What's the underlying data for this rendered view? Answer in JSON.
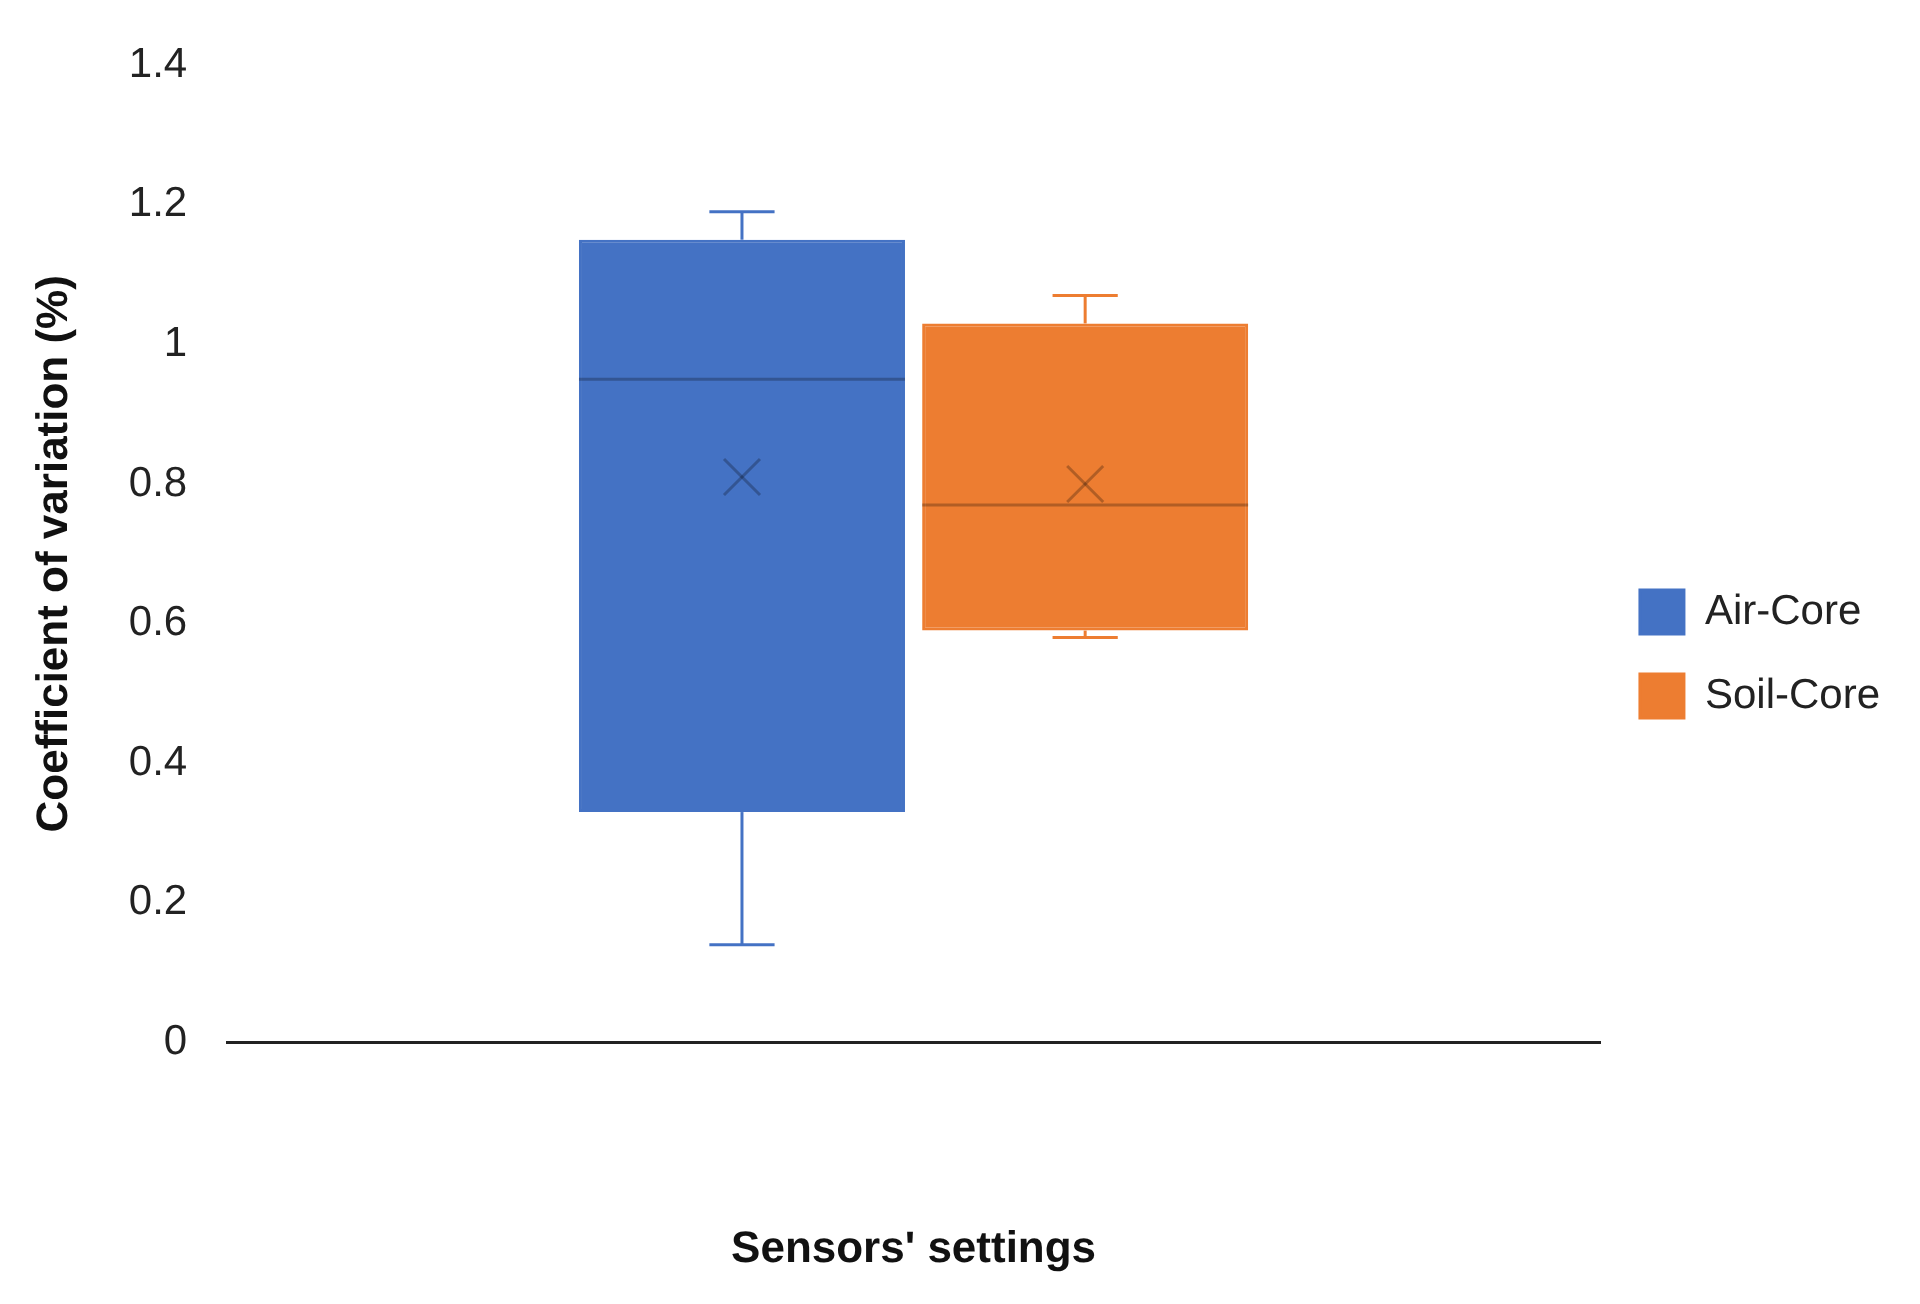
{
  "chart_data": {
    "type": "box",
    "xlabel": "Sensors' settings",
    "ylabel": "Coefficient of variation (%)",
    "categories": [
      null
    ],
    "series": [
      {
        "name": "Air-Core",
        "color": "#4472c4",
        "boxes": [
          {
            "low": 0.14,
            "q1": 0.33,
            "median": 0.95,
            "q3": 1.15,
            "high": 1.19,
            "mean": 0.81
          }
        ]
      },
      {
        "name": "Soil-Core",
        "color": "#ed7d31",
        "boxes": [
          {
            "low": 0.58,
            "q1": 0.59,
            "median": 0.77,
            "q3": 1.03,
            "high": 1.07,
            "mean": 0.8
          }
        ]
      }
    ],
    "ylim": [
      0,
      1.4
    ],
    "yticks": [
      0,
      0.2,
      0.4,
      0.6,
      0.8,
      1,
      1.2,
      1.4
    ],
    "grid": false,
    "legend": "right"
  }
}
